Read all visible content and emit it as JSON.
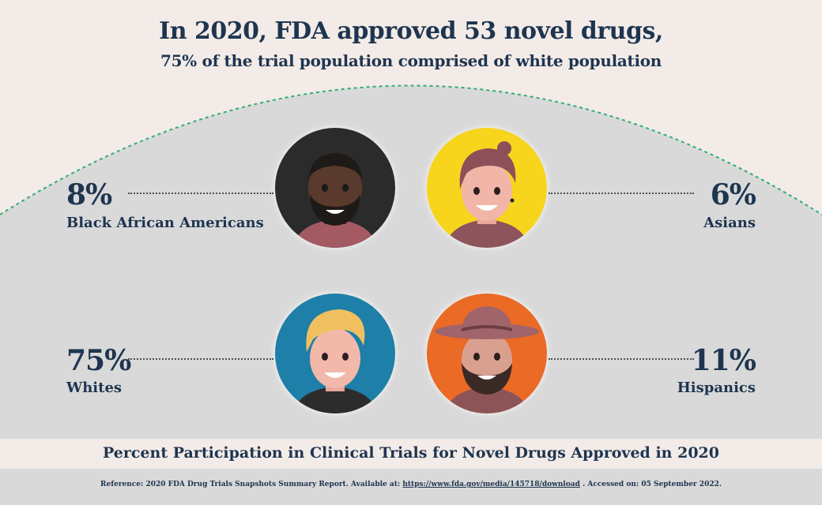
{
  "header": {
    "title": "In 2020, FDA approved 53 novel drugs,",
    "subtitle": "75% of the trial population comprised of white population"
  },
  "groups": [
    {
      "percent": "8%",
      "label": "Black African Americans",
      "avatar_icon": "black-man-avatar-icon",
      "circle_color": "#2b2b2b"
    },
    {
      "percent": "6%",
      "label": "Asians",
      "avatar_icon": "asian-man-avatar-icon",
      "circle_color": "#f7d51d"
    },
    {
      "percent": "75%",
      "label": "Whites",
      "avatar_icon": "white-man-avatar-icon",
      "circle_color": "#1e7fa8"
    },
    {
      "percent": "11%",
      "label": "Hispanics",
      "avatar_icon": "hispanic-man-avatar-icon",
      "circle_color": "#ea6a26"
    }
  ],
  "footer": {
    "title": "Percent Participation in Clinical Trials for Novel Drugs Approved in 2020",
    "reference_prefix": "Reference:  2020 FDA Drug Trials Snapshots Summary Report. Available at: ",
    "reference_link": "https://www.fda.gov/media/145718/download",
    "reference_suffix": " . Accessed on: 05 September 2022."
  },
  "colors": {
    "navy": "#1e3550",
    "background": "#f3ebe7",
    "dome": "#d9d9d9",
    "dome_border": "#2eae78"
  }
}
